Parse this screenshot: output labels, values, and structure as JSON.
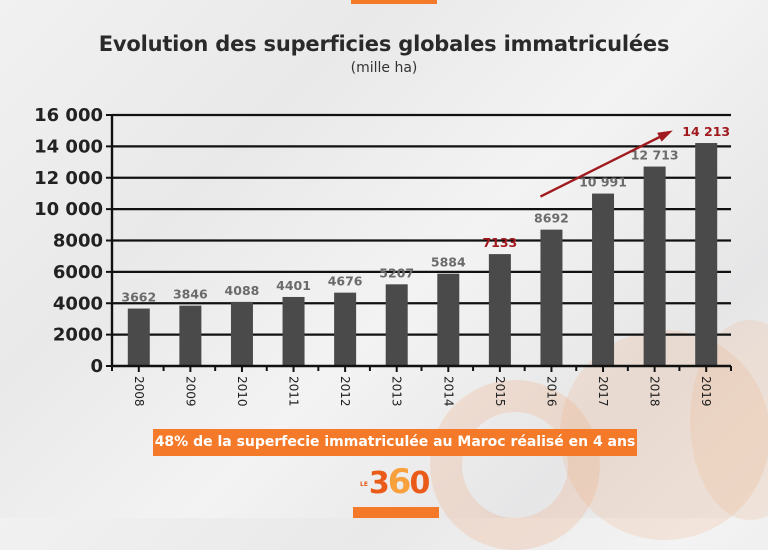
{
  "chart_data": {
    "type": "bar",
    "title": "Evolution des superficies globales immatriculées",
    "subtitle": "(mille ha)",
    "xlabel": "",
    "ylabel": "",
    "categories": [
      "2008",
      "2009",
      "2010",
      "2011",
      "2012",
      "2013",
      "2014",
      "2015",
      "2016",
      "2017",
      "2018",
      "2019"
    ],
    "values": [
      3662,
      3846,
      4088,
      4401,
      4676,
      5207,
      5884,
      7133,
      8692,
      10991,
      12713,
      14213
    ],
    "value_labels": [
      "3662",
      "3846",
      "4088",
      "4401",
      "4676",
      "5207",
      "5884",
      "7133",
      "8692",
      "10 991",
      "12 713",
      "14 213"
    ],
    "highlighted": [
      "2015",
      "2019"
    ],
    "ylim": [
      0,
      16000
    ],
    "yticks": [
      0,
      2000,
      4000,
      6000,
      8000,
      10000,
      12000,
      14000,
      16000
    ],
    "ytick_labels": [
      "0",
      "2000",
      "4000",
      "6000",
      "8000",
      "10 000",
      "12 000",
      "14 000",
      "16 000"
    ],
    "grid": true,
    "annotation": "trend arrow from 2016 to 2019",
    "colors": {
      "bar": "#4a4a4a",
      "label": "#6b6b6b",
      "highlight": "#a01a1f",
      "arrow": "#a01a1f",
      "grid": "#111111"
    }
  },
  "banner": {
    "text": "48% de la superfecie immatriculée au Maroc réalisé en 4 ans",
    "color": "#f47a2a"
  },
  "logo": {
    "prefix": "LE",
    "digit1": "3",
    "digit2": "6",
    "digit3": "0"
  }
}
